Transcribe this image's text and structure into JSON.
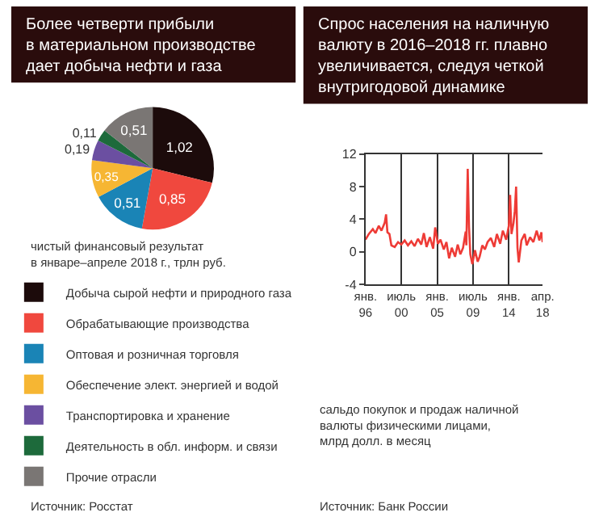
{
  "chart_data": [
    {
      "type": "pie",
      "title": "Более четверти прибыли\nв материальном производстве\nдает добыча нефти и газа",
      "categories": [
        "Добыча сырой нефти и природного газа",
        "Обрабатывающие производства",
        "Оптовая и розничная торговля",
        "Обеспечение элект. энергией и водой",
        "Транспортировка и хранение",
        "Деятельность в обл. информ. и связи",
        "Прочие отрасли"
      ],
      "values": [
        1.02,
        0.85,
        0.51,
        0.35,
        0.19,
        0.11,
        0.51
      ],
      "value_labels": [
        "1,02",
        "0,85",
        "0,51",
        "0,35",
        "0,19",
        "0,11",
        "0,51"
      ],
      "colors": [
        "#1c0b0b",
        "#f0483e",
        "#1a84b6",
        "#f6b633",
        "#6b4fa1",
        "#1d6a3b",
        "#7a7674"
      ],
      "legend": "bottom",
      "annotations": [
        "чистый финансовый результат\nв январе–апреле 2018 г., трлн руб.",
        "Источник: Росстат"
      ]
    },
    {
      "type": "line",
      "title": "Спрос населения на наличную\nвалюту в 2016–2018 гг. плавно\nувеличивается, следуя четкой\nвнутригодовой динамике",
      "x": [
        "1996-01",
        "1996-06",
        "1996-12",
        "1997-04",
        "1997-09",
        "1998-01",
        "1998-06",
        "1998-08",
        "1998-10",
        "1999-01",
        "1999-04",
        "1999-09",
        "2000-02",
        "2000-07",
        "2000-12",
        "2001-05",
        "2001-10",
        "2002-03",
        "2002-08",
        "2003-01",
        "2003-05",
        "2003-09",
        "2004-02",
        "2004-07",
        "2004-10",
        "2005-02",
        "2005-06",
        "2005-11",
        "2006-03",
        "2006-07",
        "2006-11",
        "2007-04",
        "2007-08",
        "2007-12",
        "2008-04",
        "2008-08",
        "2008-09",
        "2008-11",
        "2009-01",
        "2009-03",
        "2009-06",
        "2009-10",
        "2010-02",
        "2010-05",
        "2010-09",
        "2011-01",
        "2011-05",
        "2011-10",
        "2012-03",
        "2012-07",
        "2012-12",
        "2013-04",
        "2013-09",
        "2014-01",
        "2014-03",
        "2014-05",
        "2014-08",
        "2014-10",
        "2014-12",
        "2015-02",
        "2015-04",
        "2015-08",
        "2016-01",
        "2016-04",
        "2016-09",
        "2017-02",
        "2017-07",
        "2017-11",
        "2018-02",
        "2018-04"
      ],
      "series": [
        {
          "color": "#ee3b36",
          "values": [
            1.5,
            2.2,
            2.8,
            2.3,
            3.2,
            2.6,
            3.6,
            4.6,
            2.4,
            2.2,
            0.8,
            0.6,
            1.2,
            0.9,
            1.4,
            0.8,
            1.3,
            0.7,
            1.6,
            0.9,
            2.3,
            0.6,
            1.8,
            0.4,
            3.0,
            1.0,
            1.5,
            0.3,
            1.2,
            -0.8,
            0.5,
            -0.6,
            0.9,
            -0.3,
            0.5,
            2.5,
            0.8,
            10.2,
            3.0,
            -0.3,
            -1.5,
            0.2,
            -1.2,
            -0.6,
            0.8,
            0.3,
            1.2,
            1.7,
            0.6,
            2.2,
            1.0,
            2.6,
            1.5,
            3.2,
            7.0,
            2.2,
            3.5,
            5.0,
            8.0,
            0.5,
            -1.3,
            1.4,
            2.2,
            0.8,
            1.8,
            1.2,
            2.6,
            1.4,
            2.4,
            1.2
          ]
        }
      ],
      "xlim": [
        "1996-01",
        "2018-04"
      ],
      "xticks": [
        {
          "value": "1996-01",
          "label": "янв.\n96"
        },
        {
          "value": "2000-07",
          "label": "июль\n00"
        },
        {
          "value": "2005-01",
          "label": "янв.\n05"
        },
        {
          "value": "2009-07",
          "label": "июль\n09"
        },
        {
          "value": "2014-01",
          "label": "янв.\n14"
        },
        {
          "value": "2018-04",
          "label": "апр.\n18"
        }
      ],
      "ylim": [
        -4,
        12
      ],
      "yticks": [
        -4,
        0,
        4,
        8,
        12
      ],
      "grid": "x",
      "marker": "none",
      "line_style": "solid",
      "annotations": [
        "сальдо покупок и продаж наличной\nвалюты физическими лицами,\nмлрд долл. в месяц",
        "Источник: Банк России"
      ]
    }
  ]
}
